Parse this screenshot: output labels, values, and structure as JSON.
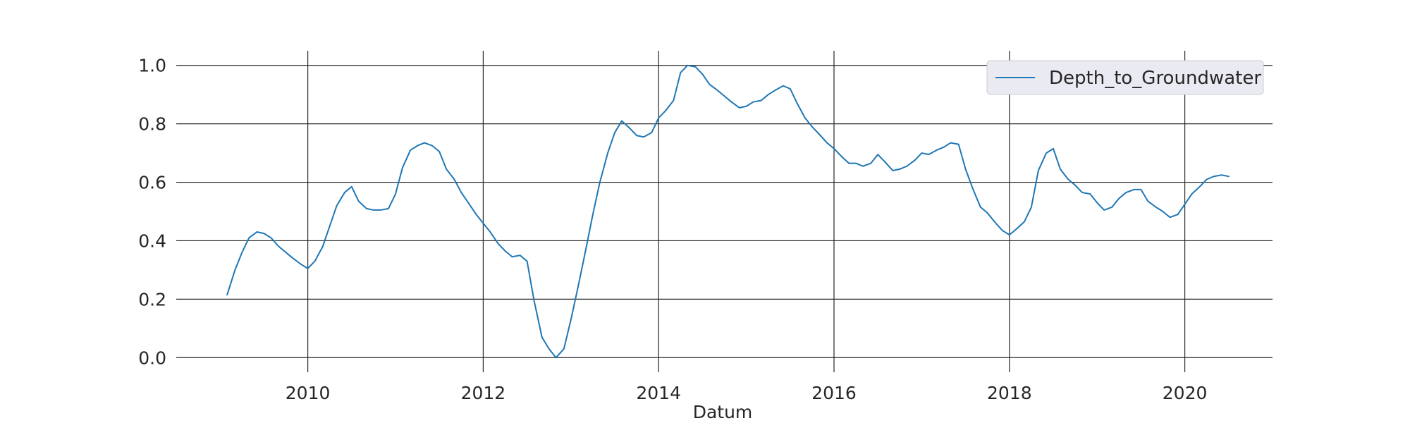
{
  "chart_data": {
    "type": "line",
    "title": "",
    "xlabel": "Datum",
    "ylabel": "",
    "xlim": [
      2008.5,
      2021.0
    ],
    "ylim": [
      -0.05,
      1.05
    ],
    "grid": true,
    "legend_position": "top-right",
    "background_color": "#ffffff",
    "grid_color": "#262626",
    "legend_face_color": "#eaeaf2",
    "legend_edge_color": "#cccccc",
    "x_ticks": [
      2010,
      2012,
      2014,
      2016,
      2018,
      2020
    ],
    "x_tick_labels": [
      "2010",
      "2012",
      "2014",
      "2016",
      "2018",
      "2020"
    ],
    "y_ticks": [
      0.0,
      0.2,
      0.4,
      0.6,
      0.8,
      1.0
    ],
    "y_tick_labels": [
      "0.0",
      "0.2",
      "0.4",
      "0.6",
      "0.8",
      "1.0"
    ],
    "series": [
      {
        "name": "Depth_to_Groundwater",
        "color": "#1f77b4",
        "x": [
          2009.08,
          2009.17,
          2009.25,
          2009.33,
          2009.42,
          2009.5,
          2009.58,
          2009.67,
          2009.75,
          2009.83,
          2009.92,
          2010.0,
          2010.08,
          2010.17,
          2010.25,
          2010.33,
          2010.42,
          2010.5,
          2010.58,
          2010.67,
          2010.75,
          2010.83,
          2010.92,
          2011.0,
          2011.08,
          2011.17,
          2011.25,
          2011.33,
          2011.42,
          2011.5,
          2011.58,
          2011.67,
          2011.75,
          2011.83,
          2011.92,
          2012.0,
          2012.08,
          2012.17,
          2012.25,
          2012.33,
          2012.42,
          2012.5,
          2012.58,
          2012.67,
          2012.75,
          2012.83,
          2012.92,
          2013.0,
          2013.08,
          2013.17,
          2013.25,
          2013.33,
          2013.42,
          2013.5,
          2013.58,
          2013.67,
          2013.75,
          2013.83,
          2013.92,
          2014.0,
          2014.08,
          2014.17,
          2014.25,
          2014.33,
          2014.42,
          2014.5,
          2014.58,
          2014.67,
          2014.75,
          2014.83,
          2014.92,
          2015.0,
          2015.08,
          2015.17,
          2015.25,
          2015.33,
          2015.42,
          2015.5,
          2015.58,
          2015.67,
          2015.75,
          2015.83,
          2015.92,
          2016.0,
          2016.08,
          2016.17,
          2016.25,
          2016.33,
          2016.42,
          2016.5,
          2016.58,
          2016.67,
          2016.75,
          2016.83,
          2016.92,
          2017.0,
          2017.08,
          2017.17,
          2017.25,
          2017.33,
          2017.42,
          2017.5,
          2017.58,
          2017.67,
          2017.75,
          2017.83,
          2017.92,
          2018.0,
          2018.08,
          2018.17,
          2018.25,
          2018.33,
          2018.42,
          2018.5,
          2018.58,
          2018.67,
          2018.75,
          2018.83,
          2018.92,
          2019.0,
          2019.08,
          2019.17,
          2019.25,
          2019.33,
          2019.42,
          2019.5,
          2019.58,
          2019.67,
          2019.75,
          2019.83,
          2019.92,
          2020.0,
          2020.08,
          2020.17,
          2020.25,
          2020.33,
          2020.42,
          2020.5
        ],
        "values": [
          0.215,
          0.3,
          0.36,
          0.41,
          0.43,
          0.425,
          0.41,
          0.38,
          0.36,
          0.34,
          0.32,
          0.305,
          0.33,
          0.38,
          0.45,
          0.52,
          0.565,
          0.585,
          0.535,
          0.51,
          0.505,
          0.505,
          0.51,
          0.56,
          0.65,
          0.71,
          0.725,
          0.735,
          0.725,
          0.705,
          0.645,
          0.61,
          0.565,
          0.53,
          0.49,
          0.46,
          0.43,
          0.39,
          0.365,
          0.345,
          0.35,
          0.33,
          0.195,
          0.07,
          0.03,
          0.0,
          0.03,
          0.13,
          0.24,
          0.37,
          0.49,
          0.6,
          0.7,
          0.77,
          0.81,
          0.785,
          0.76,
          0.755,
          0.77,
          0.82,
          0.845,
          0.88,
          0.975,
          1.0,
          0.995,
          0.97,
          0.935,
          0.915,
          0.895,
          0.875,
          0.855,
          0.86,
          0.875,
          0.88,
          0.9,
          0.915,
          0.93,
          0.92,
          0.87,
          0.82,
          0.79,
          0.765,
          0.735,
          0.715,
          0.69,
          0.665,
          0.665,
          0.655,
          0.665,
          0.695,
          0.67,
          0.64,
          0.645,
          0.655,
          0.675,
          0.7,
          0.695,
          0.71,
          0.72,
          0.735,
          0.73,
          0.645,
          0.58,
          0.515,
          0.495,
          0.465,
          0.435,
          0.42,
          0.44,
          0.465,
          0.515,
          0.64,
          0.7,
          0.715,
          0.645,
          0.61,
          0.59,
          0.565,
          0.56,
          0.53,
          0.505,
          0.515,
          0.545,
          0.565,
          0.575,
          0.575,
          0.535,
          0.515,
          0.5,
          0.48,
          0.49,
          0.525,
          0.56,
          0.585,
          0.61,
          0.62,
          0.625,
          0.62
        ]
      }
    ]
  }
}
